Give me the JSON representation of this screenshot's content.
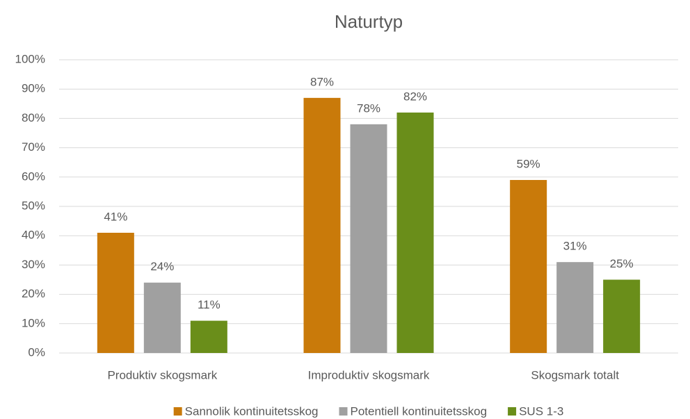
{
  "chart_data": {
    "type": "bar",
    "title": "Naturtyp",
    "categories": [
      "Produktiv skogsmark",
      "Improduktiv skogsmark",
      "Skogsmark totalt"
    ],
    "series": [
      {
        "name": "Sannolik kontinuitetsskog",
        "color": "#c97a0a",
        "values": [
          41,
          87,
          59
        ],
        "value_labels": [
          "41%",
          "87%",
          "59%"
        ]
      },
      {
        "name": "Potentiell kontinuitetsskog",
        "color": "#a0a0a0",
        "values": [
          24,
          78,
          31
        ],
        "value_labels": [
          "24%",
          "78%",
          "31%"
        ]
      },
      {
        "name": "SUS 1-3",
        "color": "#6a8e1a",
        "values": [
          11,
          82,
          25
        ],
        "value_labels": [
          "11%",
          "82%",
          "25%"
        ]
      }
    ],
    "ylim": [
      0,
      100
    ],
    "yticks": [
      {
        "value": 0,
        "label": "0%"
      },
      {
        "value": 10,
        "label": "10%"
      },
      {
        "value": 20,
        "label": "20%"
      },
      {
        "value": 30,
        "label": "30%"
      },
      {
        "value": 40,
        "label": "40%"
      },
      {
        "value": 50,
        "label": "50%"
      },
      {
        "value": 60,
        "label": "60%"
      },
      {
        "value": 70,
        "label": "70%"
      },
      {
        "value": 80,
        "label": "80%"
      },
      {
        "value": 90,
        "label": "90%"
      },
      {
        "value": 100,
        "label": "100%"
      }
    ],
    "grid": true,
    "legend": "bottom"
  }
}
